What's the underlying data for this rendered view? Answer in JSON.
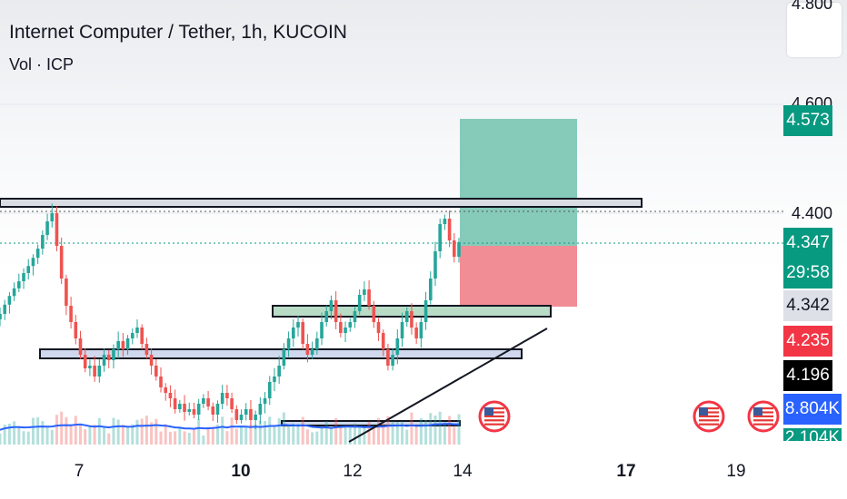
{
  "title": "Internet Computer / Tether, 1h, KUCOIN",
  "indicator": "Vol · ICP",
  "colors": {
    "up": "#26a69a",
    "down": "#ef5350",
    "volume_line": "#2962ff",
    "target_zone": "#7fc7b6",
    "stop_zone": "#f0878f",
    "support_zone": "#b9dcc6",
    "level_zone": "#cfd8ec",
    "badge_target": "#089981",
    "badge_last": "#089981",
    "badge_prev": "#dde0e7",
    "badge_low": "#f23645",
    "badge_black": "#000000",
    "badge_volume": "#2962ff"
  },
  "price_axis": {
    "ticks": [
      "4.800",
      "4.600",
      "4.400"
    ],
    "badges": [
      {
        "name": "target-price-badge",
        "label": "4.573",
        "price": 4.573,
        "kind": "target"
      },
      {
        "name": "last-price-badge",
        "label": "4.347",
        "price": 4.347,
        "kind": "last"
      },
      {
        "name": "countdown-badge",
        "label": "29:58",
        "price": 4.347,
        "kind": "countdown"
      },
      {
        "name": "prev-close-badge",
        "label": "4.342",
        "price": 4.342,
        "kind": "prev"
      },
      {
        "name": "low-price-badge",
        "label": "4.235",
        "price": 4.235,
        "kind": "low"
      },
      {
        "name": "level-price-badge",
        "label": "4.196",
        "price": 4.196,
        "kind": "black"
      },
      {
        "name": "volume-badge",
        "label": "8.804K",
        "kind": "volume"
      },
      {
        "name": "volume-ma-badge",
        "label": "2.104K",
        "kind": "volume-ma"
      }
    ]
  },
  "time_axis": {
    "ticks": [
      {
        "label": "7",
        "bold": false
      },
      {
        "label": "10",
        "bold": true
      },
      {
        "label": "12",
        "bold": false
      },
      {
        "label": "14",
        "bold": false
      },
      {
        "label": "17",
        "bold": true
      },
      {
        "label": "19",
        "bold": false
      }
    ]
  },
  "event_icons": [
    "us-flag-icon",
    "us-flag-icon",
    "us-flag-icon"
  ],
  "chart_data": {
    "type": "candlestick",
    "symbol": "ICP/USDT",
    "interval": "1h",
    "exchange": "KUCOIN",
    "y_range": [
      3.9,
      4.81
    ],
    "close_series": [
      4.215,
      4.232,
      4.248,
      4.262,
      4.275,
      4.29,
      4.303,
      4.318,
      4.335,
      4.36,
      4.385,
      4.4,
      4.34,
      4.28,
      4.23,
      4.2,
      4.17,
      4.14,
      4.115,
      4.12,
      4.1,
      4.12,
      4.14,
      4.13,
      4.15,
      4.165,
      4.15,
      4.17,
      4.18,
      4.19,
      4.16,
      4.14,
      4.12,
      4.1,
      4.08,
      4.07,
      4.06,
      4.04,
      4.05,
      4.035,
      4.04,
      4.03,
      4.05,
      4.06,
      4.045,
      4.03,
      4.05,
      4.07,
      4.06,
      4.04,
      4.02,
      4.03,
      4.04,
      4.02,
      4.03,
      4.05,
      4.06,
      4.09,
      4.1,
      4.12,
      4.15,
      4.17,
      4.19,
      4.2,
      4.16,
      4.14,
      4.15,
      4.17,
      4.2,
      4.22,
      4.24,
      4.2,
      4.18,
      4.19,
      4.2,
      4.22,
      4.25,
      4.26,
      4.23,
      4.2,
      4.18,
      4.15,
      4.12,
      4.14,
      4.17,
      4.2,
      4.22,
      4.19,
      4.17,
      4.2,
      4.24,
      4.28,
      4.33,
      4.38,
      4.39,
      4.35,
      4.32,
      4.347
    ],
    "stop_zone": [
      4.235,
      4.347
    ],
    "target_zone": [
      4.347,
      4.573
    ],
    "last_price": 4.347,
    "prev_close": 4.342,
    "levels": [
      4.42,
      4.235,
      4.196
    ]
  }
}
